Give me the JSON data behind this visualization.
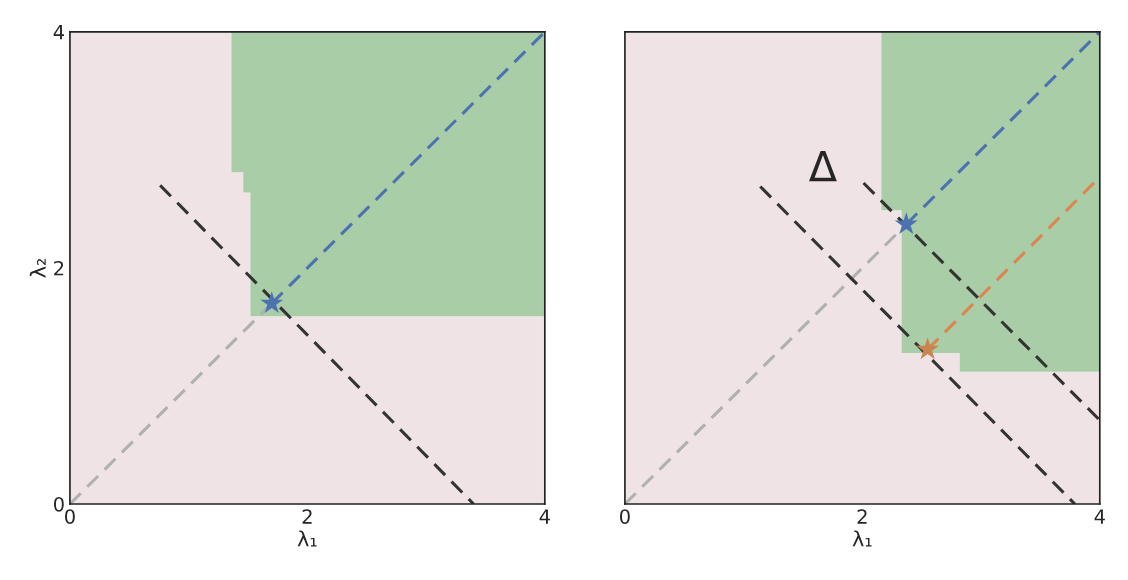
{
  "chart_data": [
    {
      "type": "line",
      "xlabel": "λ₁",
      "ylabel": "λ₂",
      "xlim": [
        0,
        4
      ],
      "ylim": [
        0,
        4
      ],
      "xticks": [
        0,
        2,
        4
      ],
      "yticks": [
        0,
        2,
        4
      ],
      "line_style": "dashed",
      "stacked": true,
      "series": [
        {
          "type": "area",
          "color": "#f0e3e5",
          "x": [
            0,
            1.36,
            1.36,
            1.46,
            1.46,
            1.52,
            1.52,
            4
          ],
          "values": [
            4,
            4,
            2.81,
            2.81,
            2.64,
            2.64,
            1.59,
            1.59
          ]
        },
        {
          "type": "area",
          "color": "#a9cda6",
          "x": [
            0,
            1.36,
            1.36,
            1.46,
            1.46,
            1.52,
            1.52,
            4
          ],
          "values": [
            0,
            0,
            1.19,
            1.19,
            1.36,
            1.36,
            2.41,
            2.41
          ]
        },
        {
          "color": "#b0b0b0",
          "x": [
            0,
            1.7
          ],
          "values": [
            0,
            1.7
          ]
        },
        {
          "color": "#4c72b0",
          "x": [
            1.7,
            4
          ],
          "values": [
            1.7,
            4
          ]
        },
        {
          "color": "#333333",
          "x": [
            0.76,
            3.4
          ],
          "values": [
            2.7,
            0
          ]
        },
        {
          "type": "scatter",
          "marker": "star",
          "color": "#4c72b0",
          "x": [
            1.7
          ],
          "values": [
            1.7
          ]
        }
      ]
    },
    {
      "type": "line",
      "xlabel": "λ₁",
      "xlim": [
        0,
        4
      ],
      "ylim": [
        0,
        4
      ],
      "xticks": [
        0,
        2,
        4
      ],
      "yticks": [
        0,
        2,
        4
      ],
      "tick_labels": "x",
      "line_style": "dashed",
      "stacked": true,
      "annotations": [
        "Δ"
      ],
      "series": [
        {
          "type": "area",
          "color": "#f0e3e5",
          "x": [
            0,
            2.16,
            2.16,
            2.33,
            2.33,
            2.82,
            2.82,
            4
          ],
          "values": [
            4,
            4,
            2.49,
            2.49,
            1.28,
            1.28,
            1.12,
            1.12
          ]
        },
        {
          "type": "area",
          "color": "#a9cda6",
          "x": [
            0,
            2.16,
            2.16,
            2.33,
            2.33,
            2.82,
            2.82,
            4
          ],
          "values": [
            0,
            0,
            1.51,
            1.51,
            2.72,
            2.72,
            2.88,
            2.88
          ]
        },
        {
          "color": "#b0b0b0",
          "x": [
            0,
            2.37
          ],
          "values": [
            0,
            2.37
          ]
        },
        {
          "color": "#4c72b0",
          "x": [
            2.37,
            4
          ],
          "values": [
            2.37,
            4
          ]
        },
        {
          "color": "#dd8452",
          "x": [
            2.55,
            4
          ],
          "values": [
            1.31,
            2.77
          ]
        },
        {
          "color": "#333333",
          "x": [
            1.14,
            3.79
          ],
          "values": [
            2.69,
            0
          ]
        },
        {
          "color": "#333333",
          "x": [
            2.01,
            4
          ],
          "values": [
            2.72,
            0.71
          ]
        },
        {
          "type": "scatter",
          "marker": "star",
          "color": "#4c72b0",
          "x": [
            2.37
          ],
          "values": [
            2.37
          ]
        },
        {
          "type": "scatter",
          "marker": "star",
          "color": "#c8854f",
          "x": [
            2.55
          ],
          "values": [
            1.31
          ]
        }
      ]
    }
  ]
}
